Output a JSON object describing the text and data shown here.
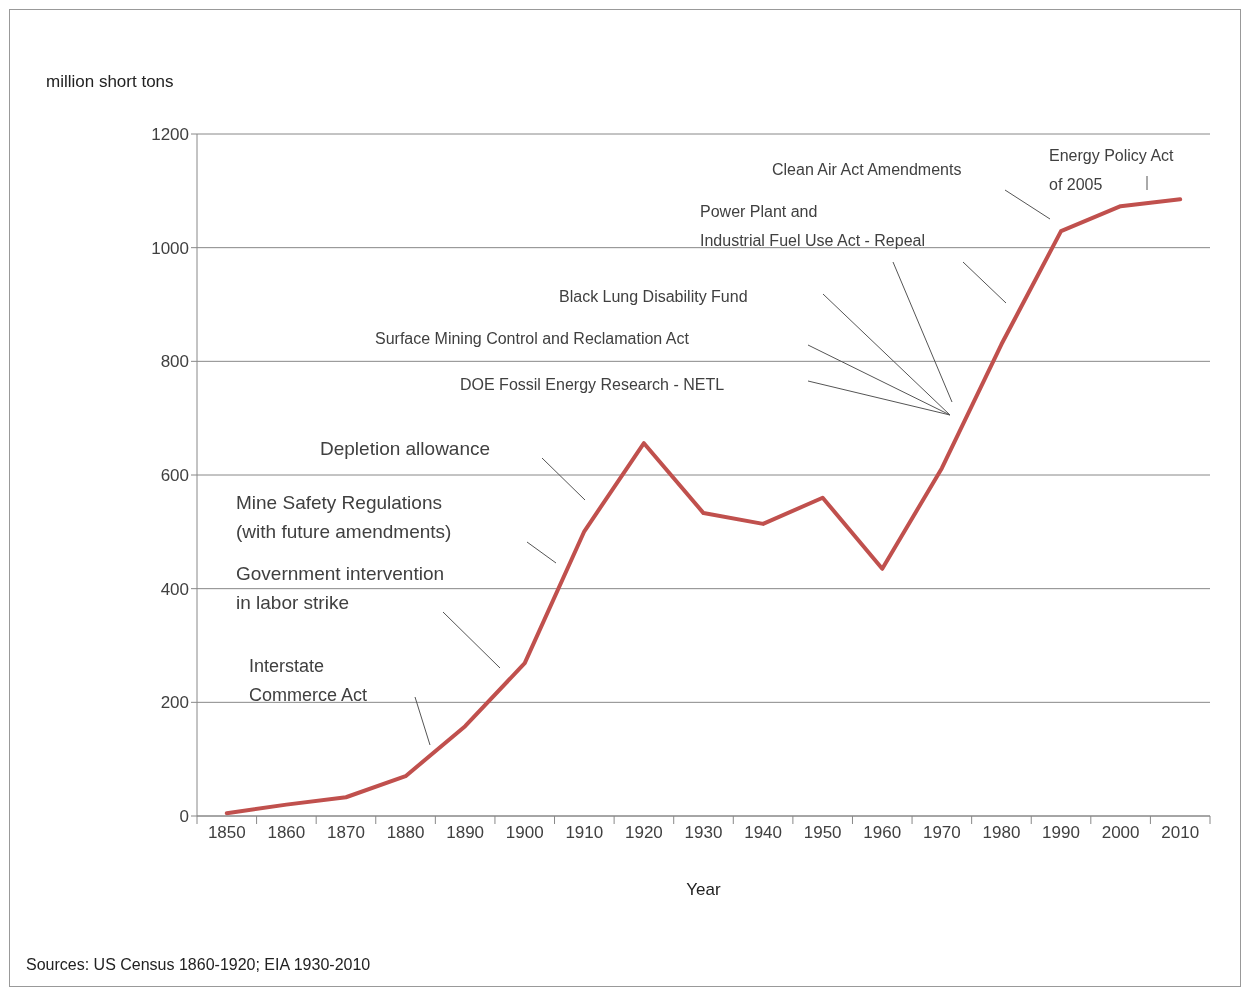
{
  "chart_data": {
    "type": "line",
    "ylabel": "million short tons",
    "xlabel": "Year",
    "categories": [
      "1850",
      "1860",
      "1870",
      "1880",
      "1890",
      "1900",
      "1910",
      "1920",
      "1930",
      "1940",
      "1950",
      "1960",
      "1970",
      "1980",
      "1990",
      "2000",
      "2010"
    ],
    "series": [
      {
        "color": "#c0504d",
        "values": [
          5,
          20,
          33,
          70,
          158,
          269,
          501,
          656,
          533,
          514,
          560,
          435,
          612,
          830,
          1029,
          1073,
          1085
        ]
      }
    ],
    "ylim": [
      0,
      1200
    ],
    "yticks": [
      0,
      200,
      400,
      600,
      800,
      1000,
      1200
    ],
    "grid": "y",
    "marker": "none",
    "line_style": "solid",
    "annotations": [
      "Interstate\nCommerce Act",
      "Government intervention\nin labor strike",
      "Mine Safety Regulations\n(with future amendments)",
      "Depletion allowance",
      "DOE Fossil Energy Research - NETL",
      "Surface Mining Control and Reclamation Act",
      "Black Lung Disability Fund",
      "Power Plant and\nIndustrial Fuel Use Act - Repeal",
      "Clean Air Act Amendments",
      "Energy Policy Act\nof 2005",
      "Sources: US Census 1860-1920; EIA 1930-2010"
    ]
  }
}
